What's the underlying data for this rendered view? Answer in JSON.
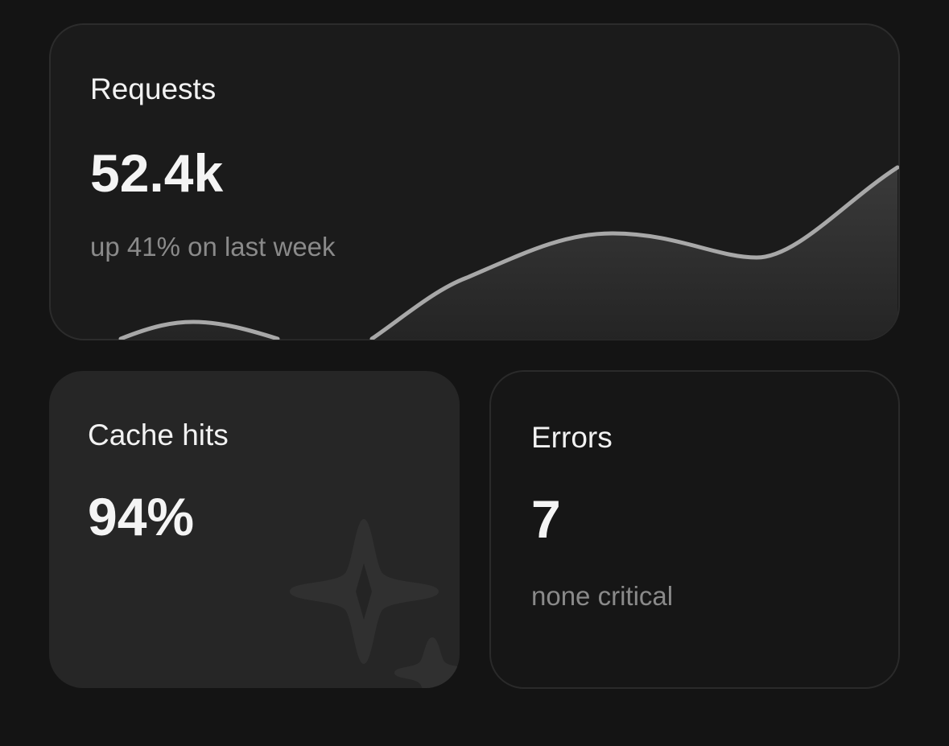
{
  "cards": [
    {
      "title": "Requests",
      "value": "52.4k",
      "note": "up 41% on last week"
    },
    {
      "title": "Cache hits",
      "value": "94%"
    },
    {
      "title": "Errors",
      "value": "7",
      "note": "none critical"
    }
  ]
}
